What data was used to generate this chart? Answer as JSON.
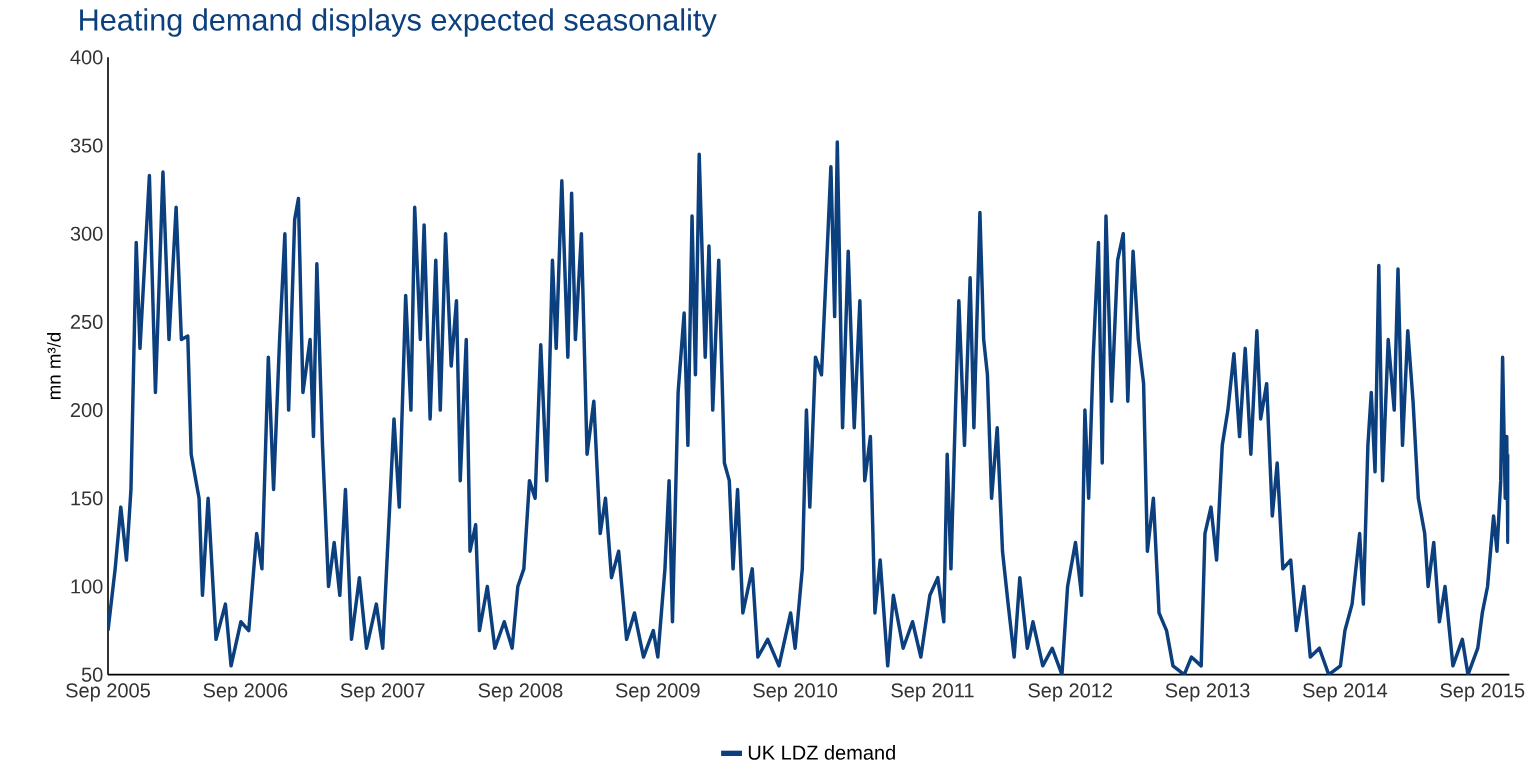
{
  "chart_data": {
    "type": "line",
    "title": "Heating demand displays expected seasonality",
    "ylabel": "mn m³/d",
    "x": [
      "2005-09-01",
      "2005-09-20",
      "2005-10-05",
      "2005-10-20",
      "2005-11-01",
      "2005-11-15",
      "2005-11-25",
      "2005-12-20",
      "2006-01-05",
      "2006-01-25",
      "2006-02-10",
      "2006-03-01",
      "2006-03-15",
      "2006-04-01",
      "2006-04-10",
      "2006-05-01",
      "2006-05-10",
      "2006-05-25",
      "2006-06-15",
      "2006-07-10",
      "2006-07-25",
      "2006-08-20",
      "2006-09-10",
      "2006-10-01",
      "2006-10-15",
      "2006-11-01",
      "2006-11-15",
      "2006-12-01",
      "2006-12-15",
      "2006-12-25",
      "2007-01-10",
      "2007-01-20",
      "2007-02-01",
      "2007-02-20",
      "2007-03-01",
      "2007-03-10",
      "2007-03-25",
      "2007-04-10",
      "2007-04-25",
      "2007-05-10",
      "2007-05-25",
      "2007-06-10",
      "2007-07-01",
      "2007-07-20",
      "2007-08-15",
      "2007-09-01",
      "2007-10-01",
      "2007-10-15",
      "2007-11-01",
      "2007-11-15",
      "2007-11-25",
      "2007-12-10",
      "2007-12-20",
      "2008-01-05",
      "2008-01-20",
      "2008-02-01",
      "2008-02-15",
      "2008-03-01",
      "2008-03-15",
      "2008-03-25",
      "2008-04-10",
      "2008-04-20",
      "2008-05-05",
      "2008-05-15",
      "2008-06-05",
      "2008-06-25",
      "2008-07-20",
      "2008-08-10",
      "2008-08-25",
      "2008-09-10",
      "2008-09-25",
      "2008-10-10",
      "2008-10-25",
      "2008-11-10",
      "2008-11-25",
      "2008-12-05",
      "2008-12-20",
      "2009-01-05",
      "2009-01-15",
      "2009-01-25",
      "2009-02-10",
      "2009-02-25",
      "2009-03-15",
      "2009-04-01",
      "2009-04-15",
      "2009-05-01",
      "2009-05-20",
      "2009-06-10",
      "2009-07-01",
      "2009-07-25",
      "2009-08-20",
      "2009-09-01",
      "2009-09-20",
      "2009-10-01",
      "2009-10-10",
      "2009-10-25",
      "2009-11-10",
      "2009-11-20",
      "2009-12-01",
      "2009-12-10",
      "2009-12-20",
      "2010-01-05",
      "2010-01-15",
      "2010-01-25",
      "2010-02-10",
      "2010-02-25",
      "2010-03-10",
      "2010-03-20",
      "2010-04-01",
      "2010-04-15",
      "2010-05-10",
      "2010-05-25",
      "2010-06-20",
      "2010-07-20",
      "2010-08-20",
      "2010-09-01",
      "2010-09-20",
      "2010-10-01",
      "2010-10-10",
      "2010-10-25",
      "2010-11-10",
      "2010-11-25",
      "2010-12-05",
      "2010-12-15",
      "2010-12-22",
      "2011-01-05",
      "2011-01-20",
      "2011-02-05",
      "2011-02-20",
      "2011-03-05",
      "2011-03-20",
      "2011-04-01",
      "2011-04-15",
      "2011-05-05",
      "2011-05-20",
      "2011-06-15",
      "2011-07-10",
      "2011-08-01",
      "2011-08-25",
      "2011-09-15",
      "2011-10-01",
      "2011-10-10",
      "2011-10-20",
      "2011-11-01",
      "2011-11-10",
      "2011-11-25",
      "2011-12-10",
      "2011-12-20",
      "2012-01-05",
      "2012-01-15",
      "2012-01-25",
      "2012-02-05",
      "2012-02-20",
      "2012-03-05",
      "2012-03-20",
      "2012-04-05",
      "2012-04-20",
      "2012-05-10",
      "2012-05-25",
      "2012-06-20",
      "2012-07-15",
      "2012-08-10",
      "2012-08-25",
      "2012-09-15",
      "2012-10-01",
      "2012-10-10",
      "2012-10-20",
      "2012-11-01",
      "2012-11-15",
      "2012-11-25",
      "2012-12-05",
      "2012-12-20",
      "2013-01-05",
      "2013-01-20",
      "2013-02-01",
      "2013-02-15",
      "2013-03-01",
      "2013-03-15",
      "2013-03-25",
      "2013-04-10",
      "2013-04-25",
      "2013-05-15",
      "2013-06-01",
      "2013-07-01",
      "2013-07-20",
      "2013-08-15",
      "2013-08-25",
      "2013-09-10",
      "2013-09-25",
      "2013-10-10",
      "2013-10-25",
      "2013-11-10",
      "2013-11-25",
      "2013-12-10",
      "2013-12-25",
      "2014-01-10",
      "2014-01-20",
      "2014-02-05",
      "2014-02-20",
      "2014-03-05",
      "2014-03-20",
      "2014-04-10",
      "2014-04-25",
      "2014-05-15",
      "2014-06-01",
      "2014-06-25",
      "2014-07-20",
      "2014-08-20",
      "2014-09-01",
      "2014-09-20",
      "2014-10-10",
      "2014-10-20",
      "2014-11-01",
      "2014-11-10",
      "2014-11-20",
      "2014-11-30",
      "2014-12-10",
      "2014-12-25",
      "2015-01-10",
      "2015-01-20",
      "2015-02-01",
      "2015-02-15",
      "2015-03-01",
      "2015-03-15",
      "2015-04-01",
      "2015-04-10",
      "2015-04-25",
      "2015-05-10",
      "2015-05-25",
      "2015-06-15",
      "2015-07-10",
      "2015-07-25",
      "2015-08-20",
      "2015-09-01",
      "2015-09-15",
      "2015-10-01",
      "2015-10-10",
      "2015-10-20",
      "2015-10-25",
      "2015-11-01",
      "2015-11-05",
      "2015-11-08",
      "2015-11-12"
    ],
    "series": [
      {
        "name": "UK LDZ demand",
        "color": "#0b3f7e",
        "values": [
          75,
          110,
          145,
          115,
          155,
          295,
          235,
          333,
          210,
          335,
          240,
          315,
          240,
          242,
          175,
          150,
          95,
          150,
          70,
          90,
          55,
          80,
          75,
          130,
          110,
          230,
          155,
          240,
          300,
          200,
          308,
          320,
          210,
          240,
          185,
          283,
          180,
          100,
          125,
          95,
          155,
          70,
          105,
          65,
          90,
          65,
          195,
          145,
          265,
          200,
          315,
          240,
          305,
          195,
          285,
          200,
          300,
          225,
          262,
          160,
          240,
          120,
          135,
          75,
          100,
          65,
          80,
          65,
          100,
          110,
          160,
          150,
          237,
          160,
          285,
          235,
          330,
          230,
          323,
          240,
          300,
          175,
          205,
          130,
          150,
          105,
          120,
          70,
          85,
          60,
          75,
          60,
          110,
          160,
          80,
          210,
          255,
          180,
          310,
          220,
          345,
          230,
          293,
          200,
          285,
          170,
          160,
          110,
          155,
          85,
          110,
          60,
          70,
          55,
          85,
          65,
          110,
          200,
          145,
          230,
          220,
          290,
          338,
          253,
          352,
          190,
          290,
          190,
          262,
          160,
          185,
          85,
          115,
          55,
          95,
          65,
          80,
          60,
          95,
          105,
          80,
          175,
          110,
          200,
          262,
          180,
          275,
          190,
          312,
          240,
          220,
          150,
          190,
          120,
          90,
          60,
          105,
          65,
          80,
          55,
          65,
          50,
          100,
          125,
          95,
          200,
          150,
          230,
          295,
          170,
          310,
          205,
          285,
          300,
          205,
          290,
          240,
          215,
          120,
          150,
          85,
          75,
          55,
          50,
          60,
          55,
          130,
          145,
          115,
          180,
          200,
          232,
          185,
          235,
          175,
          245,
          195,
          215,
          140,
          170,
          110,
          115,
          75,
          100,
          60,
          65,
          50,
          55,
          75,
          90,
          130,
          90,
          180,
          210,
          165,
          282,
          160,
          240,
          200,
          280,
          180,
          245,
          205,
          150,
          130,
          100,
          125,
          80,
          100,
          55,
          70,
          50,
          65,
          85,
          100,
          140,
          120,
          160,
          230,
          150,
          185,
          125,
          175
        ]
      }
    ],
    "xlim": [
      "2005-09-01",
      "2015-11-12"
    ],
    "xticks": [
      {
        "value": "2005-09-01",
        "label": "Sep 2005"
      },
      {
        "value": "2006-09-01",
        "label": "Sep 2006"
      },
      {
        "value": "2007-09-01",
        "label": "Sep 2007"
      },
      {
        "value": "2008-09-01",
        "label": "Sep 2008"
      },
      {
        "value": "2009-09-01",
        "label": "Sep 2009"
      },
      {
        "value": "2010-09-01",
        "label": "Sep 2010"
      },
      {
        "value": "2011-09-01",
        "label": "Sep 2011"
      },
      {
        "value": "2012-09-01",
        "label": "Sep 2012"
      },
      {
        "value": "2013-09-01",
        "label": "Sep 2013"
      },
      {
        "value": "2014-09-01",
        "label": "Sep 2014"
      },
      {
        "value": "2015-09-01",
        "label": "Sep 2015"
      }
    ],
    "ylim": [
      50,
      400
    ],
    "yticks": [
      50,
      100,
      150,
      200,
      250,
      300,
      350,
      400
    ],
    "legend": "bottom"
  }
}
